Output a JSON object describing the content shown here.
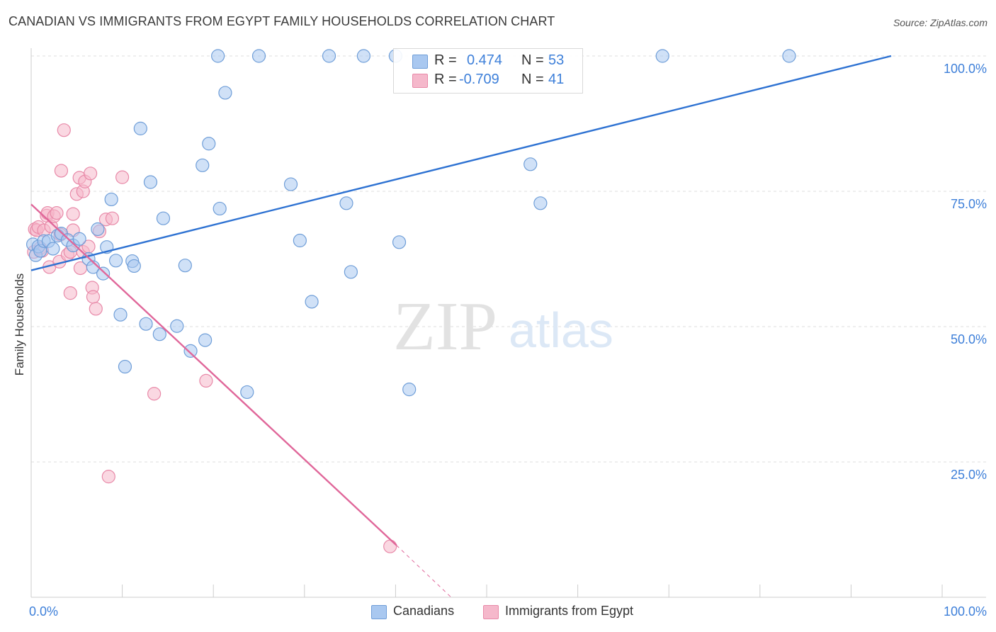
{
  "title": "CANADIAN VS IMMIGRANTS FROM EGYPT FAMILY HOUSEHOLDS CORRELATION CHART",
  "source": "Source: ZipAtlas.com",
  "watermark": {
    "zip": "ZIP",
    "atlas": "atlas"
  },
  "legend": {
    "canadians": {
      "r_label": "R =",
      "r_value": "0.474",
      "n_label": "N =",
      "n_value": "53"
    },
    "egypt": {
      "r_label": "R =",
      "r_value": "-0.709",
      "n_label": "N =",
      "n_value": "41"
    }
  },
  "bottom_legend": {
    "canadians": "Canadians",
    "egypt": "Immigrants from Egypt"
  },
  "colors": {
    "blue_fill": "#a9c8f0",
    "blue_stroke": "#6f9ed8",
    "blue_line": "#2e72d2",
    "pink_fill": "#f5b8cb",
    "pink_stroke": "#e889a8",
    "pink_line": "#e0679a",
    "axis_label": "#3d7fd9",
    "grid": "#dddddd"
  },
  "chart_data": {
    "type": "scatter",
    "title": "CANADIAN VS IMMIGRANTS FROM EGYPT FAMILY HOUSEHOLDS CORRELATION CHART",
    "xlabel": "",
    "ylabel": "Family Households",
    "xlim": [
      0,
      100
    ],
    "ylim": [
      0,
      100
    ],
    "x_tick_labels": [
      "0.0%",
      "100.0%"
    ],
    "y_ticks": [
      25,
      50,
      75,
      100
    ],
    "y_tick_labels": [
      "25.0%",
      "50.0%",
      "75.0%",
      "100.0%"
    ],
    "series": [
      {
        "name": "Canadians",
        "r": 0.474,
        "n": 53,
        "trend": {
          "x": [
            0,
            94.4
          ],
          "y": [
            60.4,
            100
          ]
        },
        "points": [
          [
            0.2,
            65.2
          ],
          [
            0.5,
            63.2
          ],
          [
            0.8,
            64.8
          ],
          [
            1.0,
            64.0
          ],
          [
            1.4,
            65.8
          ],
          [
            1.9,
            65.8
          ],
          [
            2.4,
            64.4
          ],
          [
            2.9,
            66.8
          ],
          [
            3.3,
            67.2
          ],
          [
            4.0,
            66.0
          ],
          [
            4.6,
            65.0
          ],
          [
            5.3,
            66.2
          ],
          [
            6.3,
            62.5
          ],
          [
            6.8,
            61.0
          ],
          [
            7.3,
            68.0
          ],
          [
            7.9,
            59.8
          ],
          [
            8.3,
            64.7
          ],
          [
            8.8,
            73.5
          ],
          [
            9.3,
            62.2
          ],
          [
            9.8,
            52.2
          ],
          [
            10.3,
            42.6
          ],
          [
            11.1,
            62.1
          ],
          [
            11.3,
            61.2
          ],
          [
            12.0,
            86.6
          ],
          [
            12.6,
            50.5
          ],
          [
            13.1,
            76.7
          ],
          [
            14.1,
            48.6
          ],
          [
            14.5,
            70.0
          ],
          [
            16.0,
            50.1
          ],
          [
            16.9,
            61.3
          ],
          [
            17.5,
            45.5
          ],
          [
            18.8,
            79.8
          ],
          [
            19.1,
            47.5
          ],
          [
            19.5,
            83.8
          ],
          [
            20.5,
            100.0
          ],
          [
            20.7,
            71.8
          ],
          [
            21.3,
            93.2
          ],
          [
            23.7,
            37.9
          ],
          [
            25.0,
            100.0
          ],
          [
            28.5,
            76.3
          ],
          [
            29.5,
            65.9
          ],
          [
            30.8,
            54.6
          ],
          [
            32.7,
            100.0
          ],
          [
            34.6,
            72.8
          ],
          [
            35.1,
            60.1
          ],
          [
            36.5,
            100.0
          ],
          [
            40.0,
            100.0
          ],
          [
            40.4,
            65.6
          ],
          [
            41.5,
            38.4
          ],
          [
            54.8,
            80.0
          ],
          [
            55.9,
            72.8
          ],
          [
            69.3,
            100.0
          ],
          [
            83.2,
            100.0
          ]
        ]
      },
      {
        "name": "Immigrants from Egypt",
        "r": -0.709,
        "n": 41,
        "trend": {
          "x": [
            0,
            40.1
          ],
          "y": [
            72.6,
            9.6
          ]
        },
        "trend_extension": {
          "x": [
            40.1,
            46.1
          ],
          "y": [
            9.6,
            0
          ]
        },
        "points": [
          [
            0.3,
            63.8
          ],
          [
            0.4,
            68.0
          ],
          [
            0.6,
            67.8
          ],
          [
            0.8,
            68.4
          ],
          [
            1.0,
            64.5
          ],
          [
            1.2,
            64.0
          ],
          [
            1.4,
            67.8
          ],
          [
            1.7,
            70.5
          ],
          [
            1.8,
            71.0
          ],
          [
            2.0,
            61.0
          ],
          [
            2.2,
            68.5
          ],
          [
            2.5,
            70.4
          ],
          [
            2.8,
            71.0
          ],
          [
            3.1,
            62.0
          ],
          [
            3.2,
            67.0
          ],
          [
            3.3,
            78.8
          ],
          [
            3.6,
            86.3
          ],
          [
            4.0,
            63.3
          ],
          [
            4.3,
            63.8
          ],
          [
            4.3,
            56.2
          ],
          [
            4.6,
            67.8
          ],
          [
            4.6,
            70.8
          ],
          [
            5.0,
            74.5
          ],
          [
            5.3,
            77.5
          ],
          [
            5.4,
            60.8
          ],
          [
            5.7,
            75.0
          ],
          [
            5.7,
            63.8
          ],
          [
            5.9,
            76.8
          ],
          [
            6.3,
            64.8
          ],
          [
            6.5,
            78.3
          ],
          [
            6.7,
            57.2
          ],
          [
            6.8,
            55.5
          ],
          [
            7.1,
            53.3
          ],
          [
            7.5,
            67.6
          ],
          [
            8.2,
            69.8
          ],
          [
            8.5,
            22.3
          ],
          [
            8.9,
            70.0
          ],
          [
            10.0,
            77.6
          ],
          [
            13.5,
            37.6
          ],
          [
            19.2,
            40.0
          ],
          [
            39.4,
            9.4
          ]
        ]
      }
    ]
  }
}
